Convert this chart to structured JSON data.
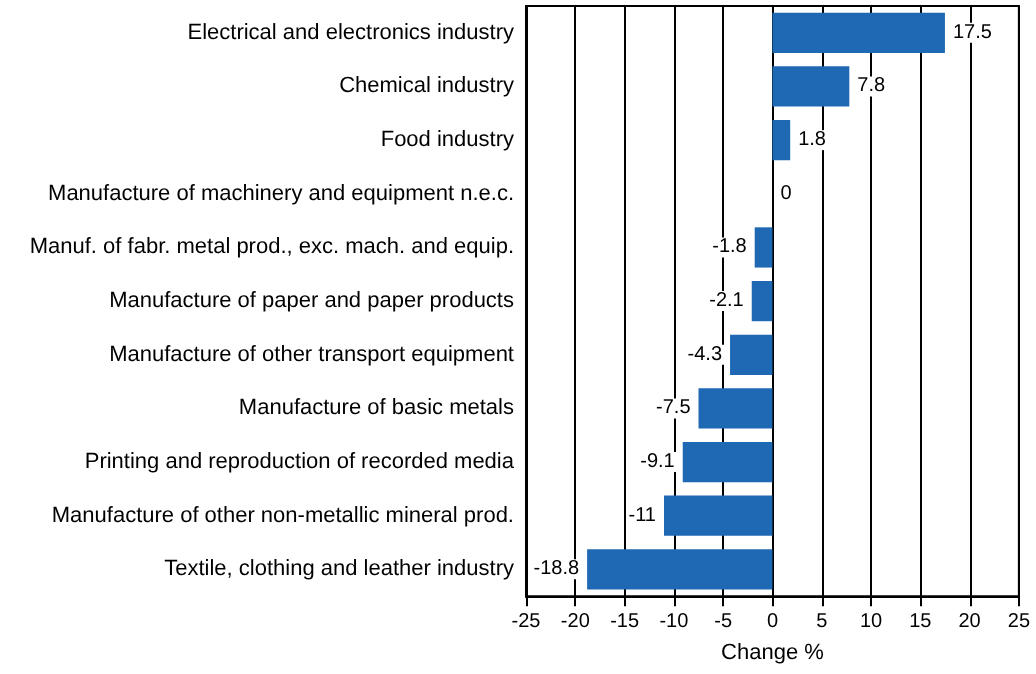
{
  "chart_data": {
    "type": "bar",
    "orientation": "horizontal",
    "xlabel": "Change %",
    "categories": [
      "Electrical and electronics industry",
      "Chemical industry",
      "Food industry",
      "Manufacture of machinery and equipment n.e.c.",
      "Manuf. of fabr. metal prod., exc. mach. and equip.",
      "Manufacture of paper and paper products",
      "Manufacture of other transport equipment",
      "Manufacture of basic metals",
      "Printing and reproduction of recorded media",
      "Manufacture of other non-metallic mineral prod.",
      "Textile, clothing and leather industry"
    ],
    "values": [
      17.5,
      7.8,
      1.8,
      0,
      -1.8,
      -2.1,
      -4.3,
      -7.5,
      -9.1,
      -11,
      -18.8
    ],
    "color": "#1f69b4",
    "xlim": [
      -25,
      25
    ],
    "xticks": [
      -25,
      -20,
      -15,
      -10,
      -5,
      0,
      5,
      10,
      15,
      20,
      25
    ],
    "grid": "x",
    "data_labels": true
  }
}
